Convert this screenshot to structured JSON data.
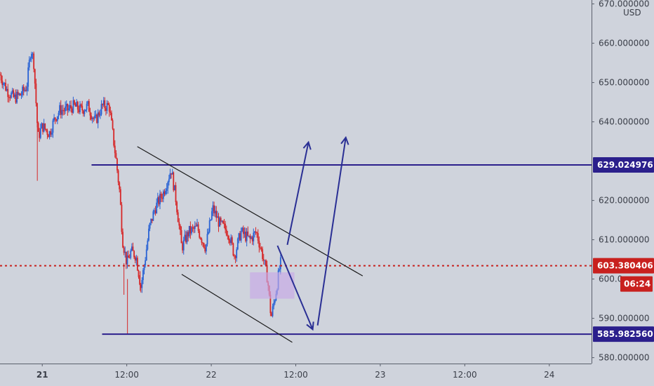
{
  "chart_data": {
    "type": "candlestick",
    "currency": "USD",
    "y_axis": {
      "ticks": [
        {
          "value": 670,
          "label": "670.000000"
        },
        {
          "value": 660,
          "label": "660.000000"
        },
        {
          "value": 650,
          "label": "650.000000"
        },
        {
          "value": 640,
          "label": "640.000000"
        },
        {
          "value": 620,
          "label": "620.000000"
        },
        {
          "value": 610,
          "label": "610.000000"
        },
        {
          "value": 600,
          "label": "600.0"
        },
        {
          "value": 590,
          "label": "590.000000"
        },
        {
          "value": 580,
          "label": "580.000000"
        }
      ],
      "range": [
        578.5,
        671
      ]
    },
    "x_axis": {
      "ticks": [
        {
          "value": 0,
          "label": "21",
          "bold": true
        },
        {
          "value": 12,
          "label": "12:00",
          "bold": false
        },
        {
          "value": 24,
          "label": "22",
          "bold": false
        },
        {
          "value": 36,
          "label": "12:00",
          "bold": false
        },
        {
          "value": 48,
          "label": "23",
          "bold": false
        },
        {
          "value": 60,
          "label": "12:00",
          "bold": false
        },
        {
          "value": 72,
          "label": "24",
          "bold": false
        }
      ],
      "range": [
        -6,
        78
      ]
    },
    "levels": {
      "resistance": {
        "value": 629.024976,
        "label": "629.024976",
        "x_start": 7
      },
      "support": {
        "value": 585.98256,
        "label": "585.982560",
        "x_start": 8.5
      },
      "last_price": {
        "value": 603.380406,
        "label": "603.380406",
        "countdown": "06:24"
      }
    },
    "channel": {
      "upper": [
        [
          13.5,
          633.7
        ],
        [
          45.5,
          600.8
        ]
      ],
      "lower": [
        [
          19.8,
          601.2
        ],
        [
          35.5,
          583.9
        ]
      ]
    },
    "zone": {
      "x0": 29.5,
      "x1": 35.8,
      "y0": 595.0,
      "y1": 601.7
    },
    "arrows": [
      [
        [
          34.8,
          608.7
        ],
        [
          37.8,
          634.8
        ]
      ],
      [
        [
          33.4,
          608.5
        ],
        [
          38.4,
          587.2
        ]
      ],
      [
        [
          39.1,
          588.2
        ],
        [
          43.1,
          636.0
        ]
      ]
    ],
    "candle_anchors": [
      [
        -6,
        652
      ],
      [
        -5,
        648
      ],
      [
        -4,
        646
      ],
      [
        -3,
        647
      ],
      [
        -2.2,
        649
      ],
      [
        -1.6,
        659
      ],
      [
        -1.2,
        655
      ],
      [
        -0.6,
        636
      ],
      [
        0,
        639
      ],
      [
        1,
        637
      ],
      [
        1.8,
        641
      ],
      [
        2.5,
        643
      ],
      [
        3.5,
        643
      ],
      [
        4.5,
        644
      ],
      [
        5.5,
        643
      ],
      [
        6.5,
        644
      ],
      [
        7.5,
        640
      ],
      [
        8.5,
        644
      ],
      [
        9.5,
        644
      ],
      [
        10.5,
        630
      ],
      [
        11,
        622
      ],
      [
        11.4,
        610
      ],
      [
        12.0,
        604
      ],
      [
        12.6,
        607
      ],
      [
        13.3,
        606
      ],
      [
        14.0,
        598
      ],
      [
        14.6,
        605
      ],
      [
        15.2,
        613
      ],
      [
        16,
        618
      ],
      [
        17.2,
        622
      ],
      [
        18.3,
        628
      ],
      [
        19.0,
        620
      ],
      [
        19.8,
        608
      ],
      [
        20.8,
        612
      ],
      [
        22,
        613
      ],
      [
        23.2,
        608
      ],
      [
        24.2,
        618
      ],
      [
        25.2,
        614
      ],
      [
        26.4,
        612
      ],
      [
        27.3,
        606
      ],
      [
        28.2,
        612
      ],
      [
        29.5,
        610
      ],
      [
        30.4,
        612
      ],
      [
        31.3,
        606
      ],
      [
        32.0,
        600
      ],
      [
        32.5,
        590
      ],
      [
        33.2,
        597
      ],
      [
        33.8,
        604
      ]
    ],
    "colors": {
      "up": "#2962d4",
      "down": "#d62728",
      "levels": "#2b1f8c",
      "channel": "#1a1a1a",
      "arrows": "#2a2f94",
      "zone": "#c7a7e6",
      "last_price": "#c8201e"
    }
  }
}
